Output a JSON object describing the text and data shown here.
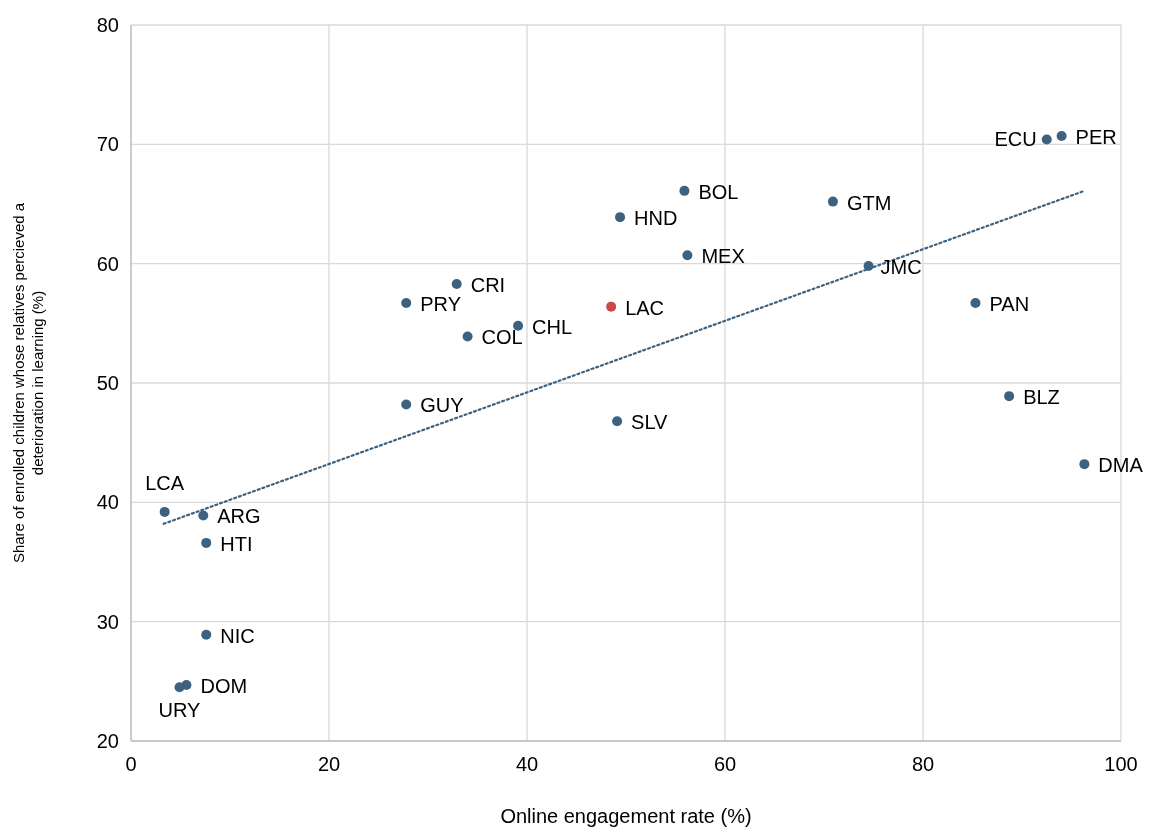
{
  "chart_data": {
    "type": "scatter",
    "xlabel": "Online engagement rate (%)",
    "ylabel": "Share of enrolled children whose relatives percieved a deterioration in learning (%)",
    "xlim": [
      0,
      100
    ],
    "xticks": [
      0,
      20,
      40,
      60,
      80,
      100
    ],
    "ylim": [
      20,
      80
    ],
    "yticks": [
      20,
      30,
      40,
      50,
      60,
      70,
      80
    ],
    "grid": true,
    "series": [
      {
        "marker": "circle",
        "x": [
          3.4,
          7.3,
          7.6,
          7.6,
          5.6,
          4.9,
          27.8,
          27.8,
          32.9,
          34.0,
          39.1,
          48.5,
          49.1,
          49.4,
          55.9,
          56.2,
          70.9,
          74.5,
          85.3,
          88.7,
          96.3,
          92.5,
          94.0
        ],
        "values": [
          39.2,
          38.9,
          36.6,
          28.9,
          24.7,
          24.5,
          48.2,
          56.7,
          58.3,
          53.9,
          54.8,
          56.4,
          46.8,
          63.9,
          66.1,
          60.7,
          65.2,
          59.8,
          56.7,
          48.9,
          43.2,
          70.4,
          70.7
        ],
        "colors": [
          "#3d6280",
          "#3d6280",
          "#3d6280",
          "#3d6280",
          "#3d6280",
          "#3d6280",
          "#3d6280",
          "#3d6280",
          "#3d6280",
          "#3d6280",
          "#3d6280",
          "#c9484a",
          "#3d6280",
          "#3d6280",
          "#3d6280",
          "#3d6280",
          "#3d6280",
          "#3d6280",
          "#3d6280",
          "#3d6280",
          "#3d6280",
          "#3d6280",
          "#3d6280"
        ]
      },
      {
        "type": "line",
        "color": "#3d6280",
        "line_style": "dotted",
        "marker": "none",
        "x": [
          3.3,
          96.3
        ],
        "values": [
          38.2,
          66.1
        ]
      }
    ],
    "annotations": [
      {
        "text": "LCA",
        "x": 3.4,
        "y": 39.2
      },
      {
        "text": "ARG",
        "x": 7.3,
        "y": 38.9
      },
      {
        "text": "HTI",
        "x": 7.6,
        "y": 36.6
      },
      {
        "text": "NIC",
        "x": 7.6,
        "y": 28.9
      },
      {
        "text": "DOM",
        "x": 5.6,
        "y": 24.7
      },
      {
        "text": "URY",
        "x": 4.9,
        "y": 24.5
      },
      {
        "text": "GUY",
        "x": 27.8,
        "y": 48.2
      },
      {
        "text": "PRY",
        "x": 27.8,
        "y": 56.7
      },
      {
        "text": "CRI",
        "x": 32.9,
        "y": 58.3
      },
      {
        "text": "COL",
        "x": 34.0,
        "y": 53.9
      },
      {
        "text": "CHL",
        "x": 39.1,
        "y": 54.8
      },
      {
        "text": "LAC",
        "x": 48.5,
        "y": 56.4
      },
      {
        "text": "SLV",
        "x": 49.1,
        "y": 46.8
      },
      {
        "text": "HND",
        "x": 49.4,
        "y": 63.9
      },
      {
        "text": "BOL",
        "x": 55.9,
        "y": 66.1
      },
      {
        "text": "MEX",
        "x": 56.2,
        "y": 60.7
      },
      {
        "text": "GTM",
        "x": 70.9,
        "y": 65.2
      },
      {
        "text": "JMC",
        "x": 74.5,
        "y": 59.8
      },
      {
        "text": "PAN",
        "x": 85.3,
        "y": 56.7
      },
      {
        "text": "BLZ",
        "x": 88.7,
        "y": 48.9
      },
      {
        "text": "DMA",
        "x": 96.3,
        "y": 43.2
      },
      {
        "text": "ECU",
        "x": 92.5,
        "y": 70.4
      },
      {
        "text": "PER",
        "x": 94.0,
        "y": 70.7
      }
    ]
  }
}
